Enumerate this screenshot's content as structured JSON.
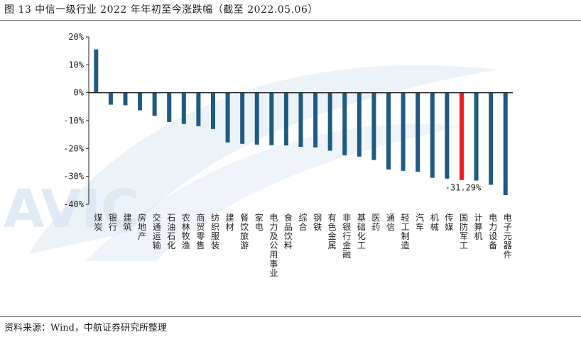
{
  "header": {
    "title": "图 13 中信一级行业 2022 年年初至今涨跌幅（截至 2022.05.06）"
  },
  "footer": {
    "source": "资料来源：Wind，中航证券研究所整理"
  },
  "watermark": {
    "text": "AVIC",
    "color": "#dbe7f3"
  },
  "colors": {
    "bar": "#1f5a82",
    "highlight": "#ee1c1c",
    "axis": "#222222"
  },
  "chart_data": {
    "type": "bar",
    "title": "",
    "xlabel": "",
    "ylabel": "",
    "ylim": [
      -40,
      20
    ],
    "yticks": [
      20,
      10,
      0,
      -10,
      -20,
      -30,
      -40
    ],
    "ytick_labels": [
      "20%",
      "10%",
      "0%",
      "-10%",
      "-20%",
      "-30%",
      "-40%"
    ],
    "unit": "%",
    "grid": false,
    "legend": "none",
    "categories": [
      "煤炭",
      "银行",
      "建筑",
      "房地产",
      "交通运输",
      "石油石化",
      "农林牧渔",
      "商贸零售",
      "纺织服装",
      "建材",
      "餐饮旅游",
      "家电",
      "电力及公用事业",
      "食品饮料",
      "综合",
      "钢铁",
      "有色金属",
      "非银行金融",
      "基础化工",
      "医药",
      "通信",
      "轻工制造",
      "汽车",
      "机械",
      "传媒",
      "国防军工",
      "计算机",
      "电力设备",
      "电子元器件"
    ],
    "values": [
      15.5,
      -4.3,
      -4.5,
      -6.3,
      -8.3,
      -10.5,
      -11.2,
      -12.0,
      -13.0,
      -17.8,
      -18.3,
      -18.6,
      -18.8,
      -18.9,
      -19.4,
      -19.6,
      -20.8,
      -22.4,
      -22.9,
      -24.1,
      -27.5,
      -28.0,
      -28.3,
      -30.5,
      -30.8,
      -31.29,
      -31.5,
      -33.0,
      -36.7
    ],
    "highlight_category": "国防军工",
    "annotation": "-31.29%"
  }
}
